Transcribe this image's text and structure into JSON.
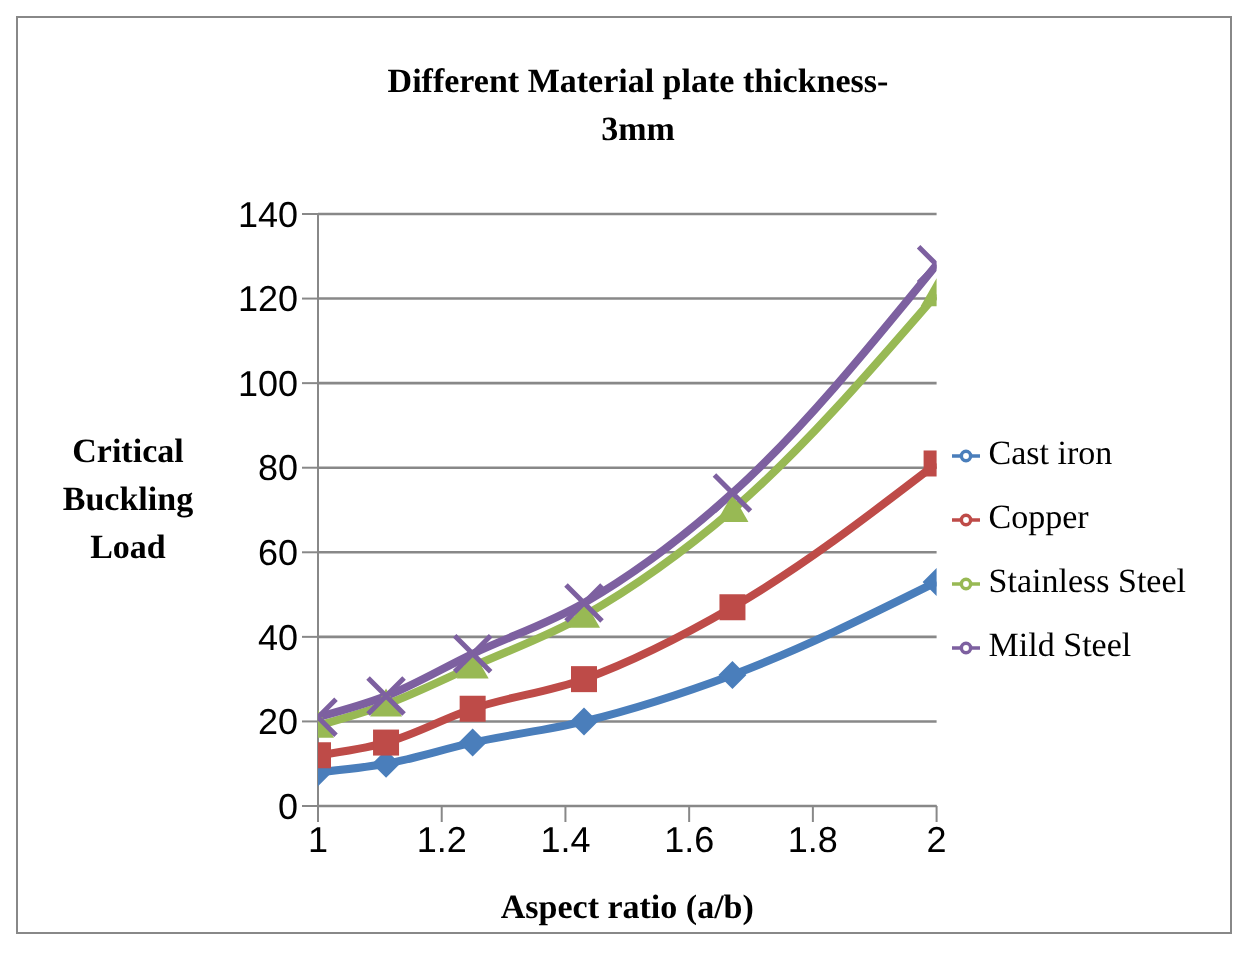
{
  "chart_data": {
    "type": "line",
    "title": "Different Material plate thickness-3mm",
    "xlabel": "Aspect ratio (a/b)",
    "ylabel": "Critical Buckling Load",
    "x": [
      1,
      1.11,
      1.25,
      1.43,
      1.67,
      2
    ],
    "series": [
      {
        "name": "Cast iron",
        "color": "#4a7ebb",
        "marker": "diamond",
        "values": [
          8,
          10,
          15,
          20,
          31,
          53
        ]
      },
      {
        "name": "Copper",
        "color": "#be4b48",
        "marker": "square",
        "values": [
          12,
          15,
          23,
          30,
          47,
          81
        ]
      },
      {
        "name": "Stainless Steel",
        "color": "#98b954",
        "marker": "triangle",
        "values": [
          19,
          24,
          33,
          45,
          70,
          121
        ]
      },
      {
        "name": "Mild Steel",
        "color": "#7d60a0",
        "marker": "cross",
        "values": [
          21,
          26,
          36,
          48,
          74,
          128
        ]
      }
    ],
    "xlim": [
      1,
      2
    ],
    "xticks": [
      1,
      1.2,
      1.4,
      1.6,
      1.8,
      2
    ],
    "ylim": [
      0,
      140
    ],
    "yticks": [
      0,
      20,
      40,
      60,
      80,
      100,
      120,
      140
    ],
    "grid": "y",
    "legend": "right",
    "line_style": "solid"
  }
}
